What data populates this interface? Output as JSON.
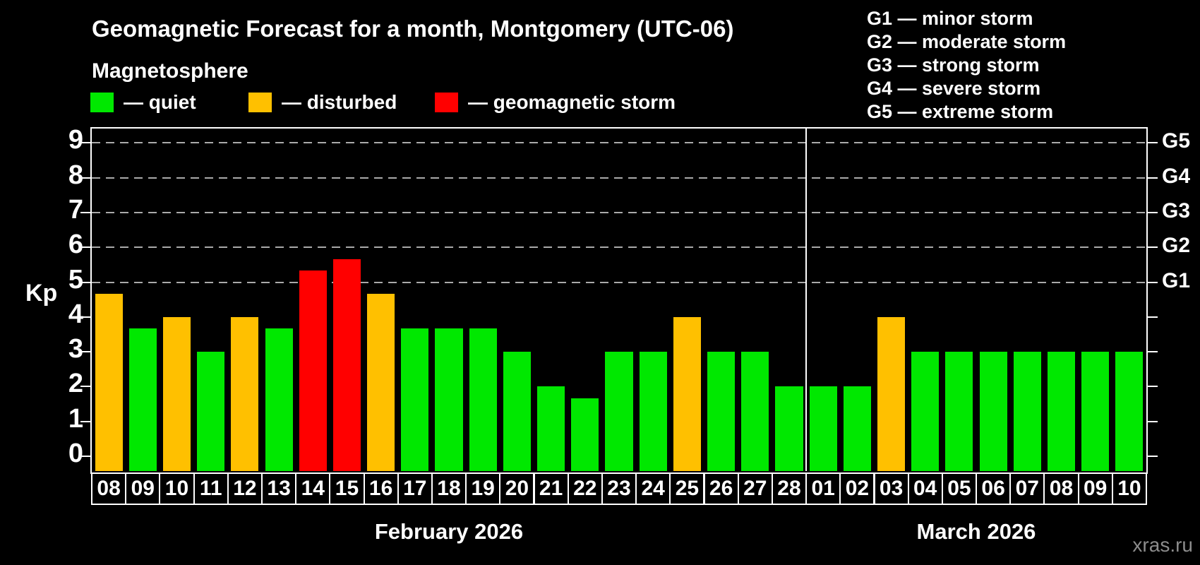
{
  "header": {
    "title": "Geomagnetic Forecast for a month, Montgomery (UTC-06)",
    "subtitle": "Magnetosphere"
  },
  "legend": {
    "items": [
      {
        "key": "quiet",
        "label": "— quiet",
        "color": "#00e800"
      },
      {
        "key": "disturbed",
        "label": "— disturbed",
        "color": "#ffc000"
      },
      {
        "key": "storm",
        "label": "— geomagnetic storm",
        "color": "#ff0000"
      }
    ]
  },
  "g_legend": {
    "items": [
      "G1 — minor storm",
      "G2 — moderate storm",
      "G3 — strong storm",
      "G4 — severe storm",
      "G5 — extreme storm"
    ]
  },
  "watermark": "xras.ru",
  "colors": {
    "background": "#000000",
    "text": "#ffffff",
    "grid": "#aaaaaa",
    "axis": "#ffffff",
    "quiet": "#00e800",
    "disturbed": "#ffc000",
    "storm": "#ff0000",
    "watermark": "#8c8c8c"
  },
  "chart_data": {
    "type": "bar",
    "title": "Geomagnetic Forecast for a month, Montgomery (UTC-06)",
    "ylabel": "Kp",
    "xlabel": "",
    "ylim": [
      0,
      9.5
    ],
    "yticks": [
      0,
      1,
      2,
      3,
      4,
      5,
      6,
      7,
      8,
      9
    ],
    "gridlines_kp": [
      5,
      6,
      7,
      8,
      9
    ],
    "grid": "dashed horizontal lines at storm levels G1–G5",
    "legend_position": "top",
    "right_axis": [
      {
        "label": "G1",
        "kp": 5
      },
      {
        "label": "G2",
        "kp": 6
      },
      {
        "label": "G3",
        "kp": 7
      },
      {
        "label": "G4",
        "kp": 8
      },
      {
        "label": "G5",
        "kp": 9
      }
    ],
    "months": [
      {
        "label": "February 2026",
        "days": 21
      },
      {
        "label": "March 2026",
        "days": 10
      }
    ],
    "bars": [
      {
        "day": "08",
        "kp": 4.67,
        "status": "disturbed"
      },
      {
        "day": "09",
        "kp": 3.67,
        "status": "quiet"
      },
      {
        "day": "10",
        "kp": 4.0,
        "status": "disturbed"
      },
      {
        "day": "11",
        "kp": 3.0,
        "status": "quiet"
      },
      {
        "day": "12",
        "kp": 4.0,
        "status": "disturbed"
      },
      {
        "day": "13",
        "kp": 3.67,
        "status": "quiet"
      },
      {
        "day": "14",
        "kp": 5.33,
        "status": "storm"
      },
      {
        "day": "15",
        "kp": 5.67,
        "status": "storm"
      },
      {
        "day": "16",
        "kp": 4.67,
        "status": "disturbed"
      },
      {
        "day": "17",
        "kp": 3.67,
        "status": "quiet"
      },
      {
        "day": "18",
        "kp": 3.67,
        "status": "quiet"
      },
      {
        "day": "19",
        "kp": 3.67,
        "status": "quiet"
      },
      {
        "day": "20",
        "kp": 3.0,
        "status": "quiet"
      },
      {
        "day": "21",
        "kp": 2.0,
        "status": "quiet"
      },
      {
        "day": "22",
        "kp": 1.67,
        "status": "quiet"
      },
      {
        "day": "23",
        "kp": 3.0,
        "status": "quiet"
      },
      {
        "day": "24",
        "kp": 3.0,
        "status": "quiet"
      },
      {
        "day": "25",
        "kp": 4.0,
        "status": "disturbed"
      },
      {
        "day": "26",
        "kp": 3.0,
        "status": "quiet"
      },
      {
        "day": "27",
        "kp": 3.0,
        "status": "quiet"
      },
      {
        "day": "28",
        "kp": 2.0,
        "status": "quiet"
      },
      {
        "day": "01",
        "kp": 2.0,
        "status": "quiet"
      },
      {
        "day": "02",
        "kp": 2.0,
        "status": "quiet"
      },
      {
        "day": "03",
        "kp": 4.0,
        "status": "disturbed"
      },
      {
        "day": "04",
        "kp": 3.0,
        "status": "quiet"
      },
      {
        "day": "05",
        "kp": 3.0,
        "status": "quiet"
      },
      {
        "day": "06",
        "kp": 3.0,
        "status": "quiet"
      },
      {
        "day": "07",
        "kp": 3.0,
        "status": "quiet"
      },
      {
        "day": "08",
        "kp": 3.0,
        "status": "quiet"
      },
      {
        "day": "09",
        "kp": 3.0,
        "status": "quiet"
      },
      {
        "day": "10",
        "kp": 3.0,
        "status": "quiet"
      }
    ]
  }
}
